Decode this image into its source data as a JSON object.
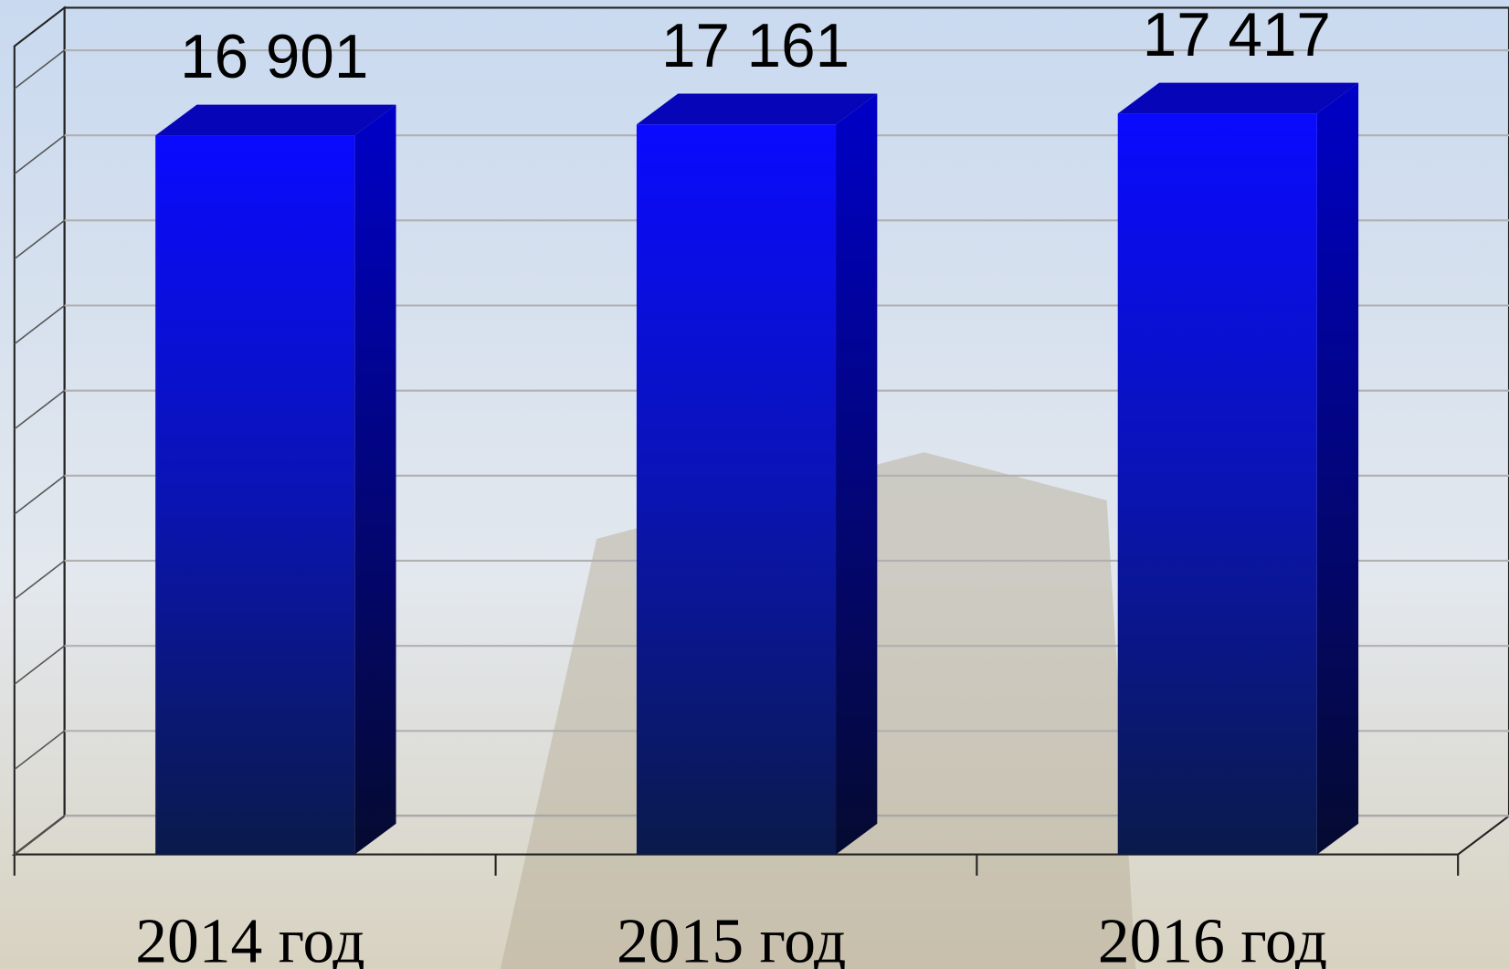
{
  "chart_data": {
    "type": "bar",
    "categories": [
      "2014 год",
      "2015 год",
      "2016 год"
    ],
    "values": [
      16901,
      17161,
      17417
    ],
    "value_labels": [
      "16 901",
      "17 161",
      "17 417"
    ],
    "color": "#0a0aff",
    "ylim": [
      0,
      19000
    ],
    "yticks": [
      0,
      2000,
      4000,
      6000,
      8000,
      10000,
      12000,
      14000,
      16000,
      18000
    ],
    "grid": true
  }
}
